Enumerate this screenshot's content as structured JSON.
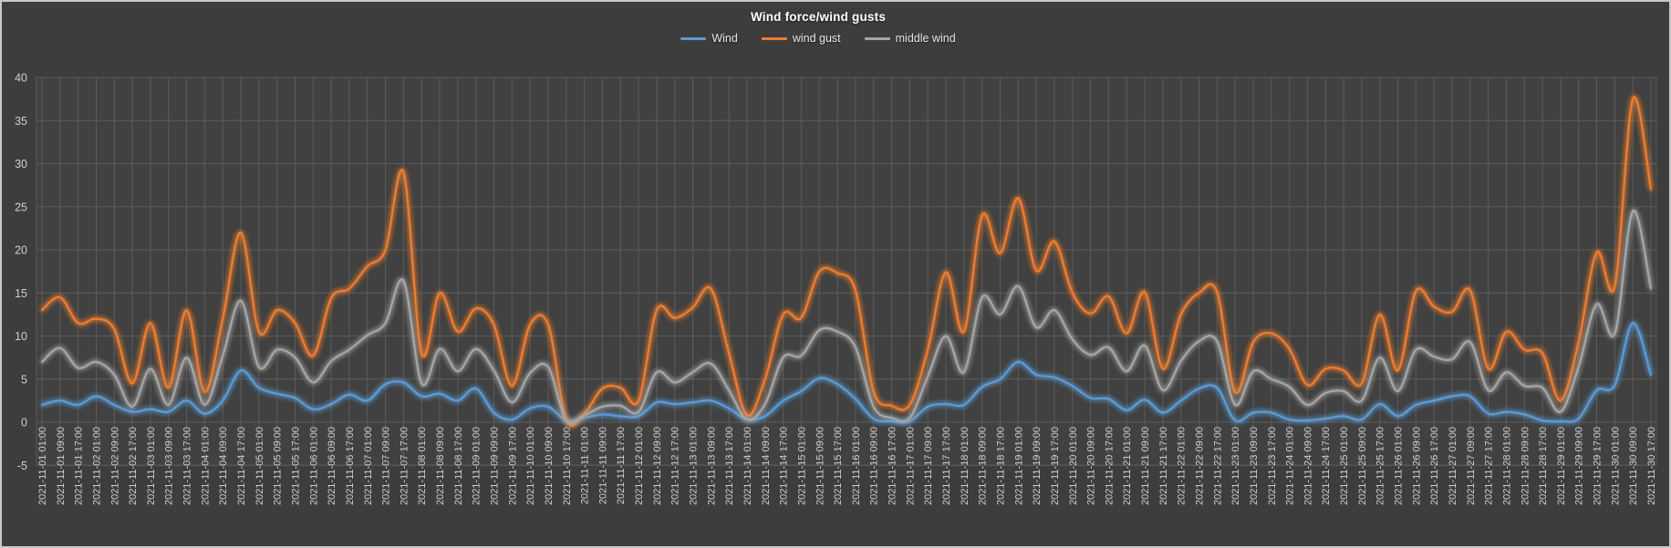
{
  "chart": {
    "background_color": "#3D3D3D",
    "plot_background_color": "#414141",
    "frame_border_color": "#C8C8C8",
    "gridline_color": "#5C5C5C",
    "title_color": "#FFFFFF",
    "axis_label_color": "#CFCFCF",
    "legend_text_color": "#E6E6E6"
  },
  "chart_data": {
    "type": "line",
    "title": "Wind force/wind gusts",
    "xlabel": "",
    "ylabel": "",
    "ylim": [
      -5,
      40
    ],
    "yticks": [
      40,
      35,
      30,
      25,
      20,
      15,
      10,
      5,
      0,
      -5
    ],
    "grid": true,
    "legend_position": "top",
    "smooth": true,
    "glow": true,
    "x": [
      "2021-11-01 01:00",
      "2021-11-01 09:00",
      "2021-11-01 17:00",
      "2021-11-02 01:00",
      "2021-11-02 09:00",
      "2021-11-02 17:00",
      "2021-11-03 01:00",
      "2021-11-03 09:00",
      "2021-11-03 17:00",
      "2021-11-04 01:00",
      "2021-11-04 09:00",
      "2021-11-04 17:00",
      "2021-11-05 01:00",
      "2021-11-05 09:00",
      "2021-11-05 17:00",
      "2021-11-06 01:00",
      "2021-11-06 09:00",
      "2021-11-06 17:00",
      "2021-11-07 01:00",
      "2021-11-07 09:00",
      "2021-11-07 17:00",
      "2021-11-08 01:00",
      "2021-11-08 09:00",
      "2021-11-08 17:00",
      "2021-11-09 01:00",
      "2021-11-09 09:00",
      "2021-11-09 17:00",
      "2021-11-10 01:00",
      "2021-11-10 09:00",
      "2021-11-10 17:00",
      "2021-11-11 01:00",
      "2021-11-11 09:00",
      "2021-11-11 17:00",
      "2021-11-12 01:00",
      "2021-11-12 09:00",
      "2021-11-12 17:00",
      "2021-11-13 01:00",
      "2021-11-13 09:00",
      "2021-11-13 17:00",
      "2021-11-14 01:00",
      "2021-11-14 09:00",
      "2021-11-14 17:00",
      "2021-11-15 01:00",
      "2021-11-15 09:00",
      "2021-11-15 17:00",
      "2021-11-16 01:00",
      "2021-11-16 09:00",
      "2021-11-16 17:00",
      "2021-11-17 01:00",
      "2021-11-17 09:00",
      "2021-11-17 17:00",
      "2021-11-18 01:00",
      "2021-11-18 09:00",
      "2021-11-18 17:00",
      "2021-11-19 01:00",
      "2021-11-19 09:00",
      "2021-11-19 17:00",
      "2021-11-20 01:00",
      "2021-11-20 09:00",
      "2021-11-20 17:00",
      "2021-11-21 01:00",
      "2021-11-21 09:00",
      "2021-11-21 17:00",
      "2021-11-22 01:00",
      "2021-11-22 09:00",
      "2021-11-22 17:00",
      "2021-11-23 01:00",
      "2021-11-23 09:00",
      "2021-11-23 17:00",
      "2021-11-24 01:00",
      "2021-11-24 09:00",
      "2021-11-24 17:00",
      "2021-11-25 01:00",
      "2021-11-25 09:00",
      "2021-11-25 17:00",
      "2021-11-26 01:00",
      "2021-11-26 09:00",
      "2021-11-26 17:00",
      "2021-11-27 01:00",
      "2021-11-27 09:00",
      "2021-11-27 17:00",
      "2021-11-28 01:00",
      "2021-11-28 09:00",
      "2021-11-28 17:00",
      "2021-11-29 01:00",
      "2021-11-29 09:00",
      "2021-11-29 17:00",
      "2021-11-30 01:00",
      "2021-11-30 09:00",
      "2021-11-30 17:00"
    ],
    "series": [
      {
        "name": "Wind",
        "color": "#5B9BD5",
        "values": [
          2.0,
          2.5,
          2.0,
          3.0,
          2.0,
          1.2,
          1.5,
          1.2,
          2.5,
          1.0,
          2.5,
          6.0,
          4.0,
          3.3,
          2.8,
          1.5,
          2.1,
          3.2,
          2.5,
          4.4,
          4.6,
          3.0,
          3.3,
          2.5,
          3.9,
          1.1,
          0.3,
          1.6,
          1.8,
          0.2,
          0.5,
          0.9,
          0.7,
          0.7,
          2.3,
          2.1,
          2.3,
          2.5,
          1.6,
          0.3,
          0.7,
          2.5,
          3.6,
          5.1,
          4.4,
          2.7,
          0.4,
          0.1,
          0.1,
          1.8,
          2.1,
          2.0,
          4.1,
          5.0,
          7.0,
          5.5,
          5.2,
          4.2,
          2.8,
          2.7,
          1.4,
          2.6,
          1.1,
          2.5,
          3.9,
          4.0,
          0.2,
          1.1,
          1.1,
          0.3,
          0.2,
          0.4,
          0.7,
          0.3,
          2.1,
          0.7,
          2.0,
          2.5,
          3.0,
          3.0,
          1.0,
          1.2,
          0.9,
          0.2,
          0.1,
          0.4,
          3.7,
          4.3,
          11.5,
          5.5
        ]
      },
      {
        "name": "wind gust",
        "color": "#ED7D31",
        "values": [
          13.0,
          14.5,
          11.5,
          12.0,
          10.8,
          4.5,
          11.5,
          4.0,
          13.0,
          3.5,
          12.0,
          22.0,
          10.5,
          13.0,
          11.5,
          7.7,
          14.4,
          15.5,
          18.1,
          20.0,
          29.0,
          8.0,
          15.0,
          10.5,
          13.2,
          11.3,
          4.2,
          11.3,
          11.3,
          0.3,
          1.0,
          3.9,
          4.0,
          2.5,
          13.0,
          12.1,
          13.3,
          15.5,
          8.0,
          0.8,
          5.0,
          12.5,
          12.1,
          17.5,
          17.3,
          15.3,
          3.6,
          1.9,
          2.0,
          8.4,
          17.4,
          10.5,
          24.0,
          19.6,
          26.0,
          17.6,
          21.0,
          15.0,
          12.6,
          14.6,
          10.3,
          15.1,
          6.2,
          12.5,
          15.0,
          15.1,
          3.5,
          9.3,
          10.3,
          8.5,
          4.3,
          6.2,
          6.0,
          4.5,
          12.5,
          6.0,
          15.2,
          13.4,
          12.8,
          15.3,
          6.2,
          10.5,
          8.4,
          8.0,
          2.5,
          9.3,
          19.7,
          15.8,
          37.5,
          27.0
        ]
      },
      {
        "name": "middle wind",
        "color": "#A6A6A6",
        "values": [
          7.0,
          8.6,
          6.3,
          7.0,
          5.5,
          1.8,
          6.2,
          2.0,
          7.5,
          2.0,
          7.7,
          14.1,
          6.4,
          8.4,
          7.5,
          4.6,
          7.1,
          8.4,
          10.1,
          11.5,
          16.4,
          4.5,
          8.5,
          5.9,
          8.5,
          6.0,
          2.3,
          5.7,
          6.4,
          0.2,
          0.8,
          1.8,
          1.9,
          1.2,
          5.8,
          4.6,
          5.8,
          6.8,
          3.7,
          0.3,
          2.1,
          7.5,
          7.7,
          10.7,
          10.5,
          8.7,
          1.8,
          0.5,
          0.5,
          5.3,
          10.0,
          5.8,
          14.5,
          12.5,
          15.8,
          11.0,
          13.0,
          9.6,
          7.8,
          8.7,
          5.9,
          8.9,
          3.7,
          7.1,
          9.4,
          9.4,
          2.0,
          5.9,
          5.0,
          4.1,
          2.0,
          3.4,
          3.6,
          2.5,
          7.5,
          3.6,
          8.4,
          7.6,
          7.3,
          9.3,
          3.7,
          5.8,
          4.2,
          4.0,
          1.2,
          6.4,
          13.7,
          10.3,
          24.5,
          15.5
        ]
      }
    ]
  }
}
